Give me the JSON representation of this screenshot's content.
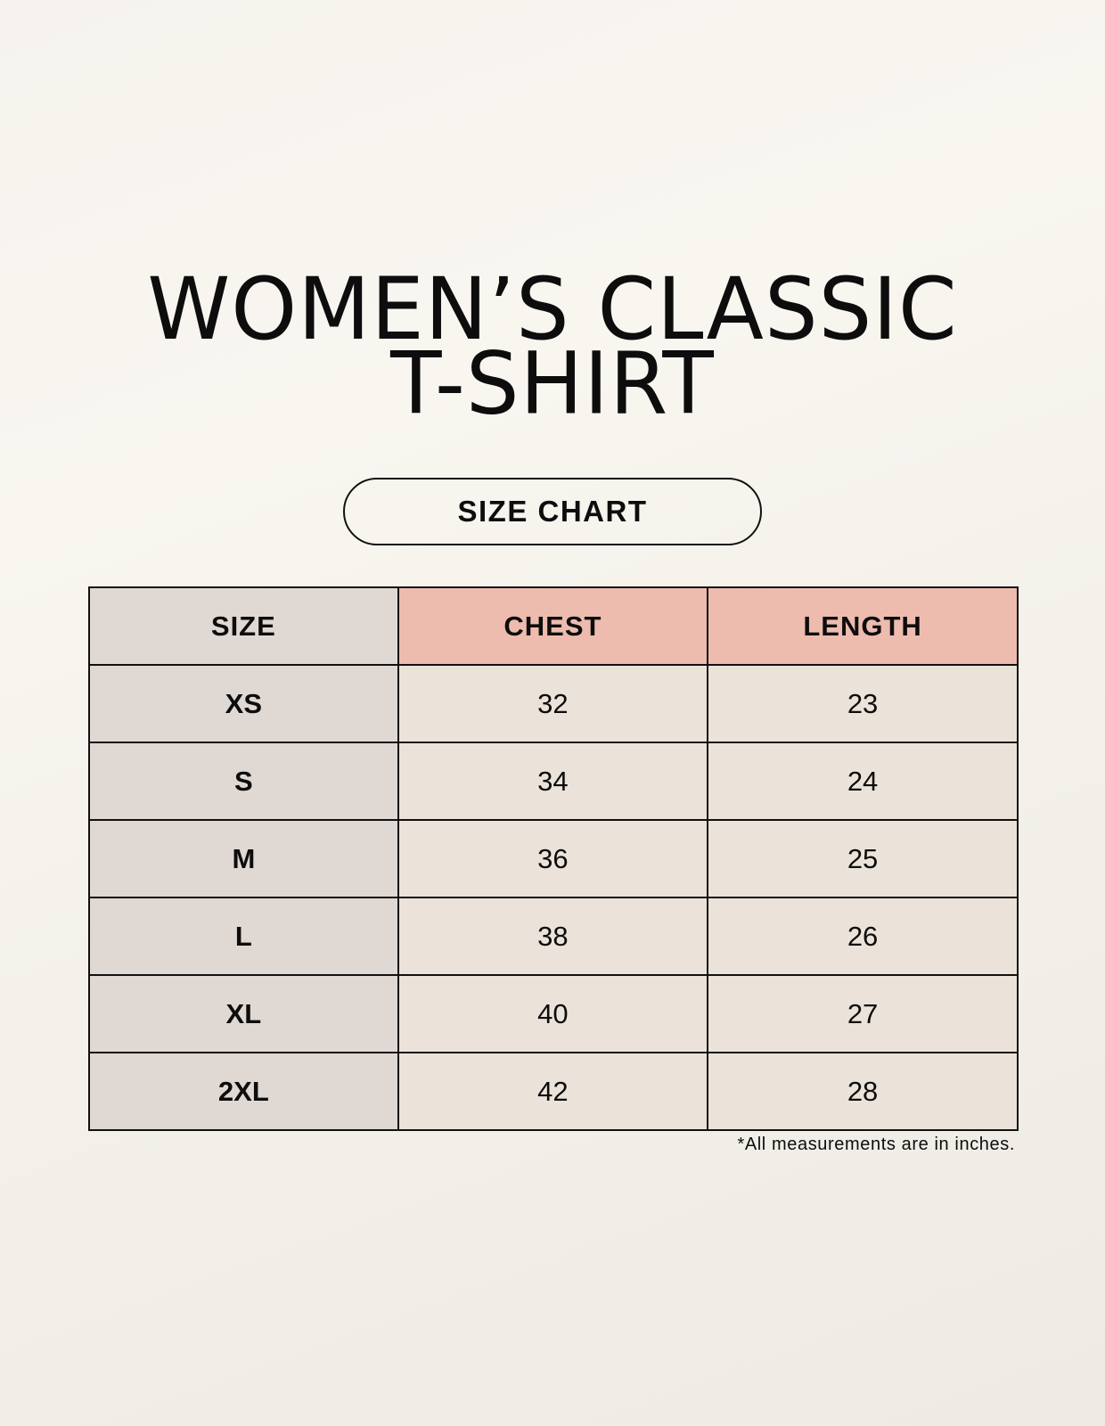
{
  "title": {
    "line1": "WOMEN’S CLASSIC",
    "line2": "T-SHIRT"
  },
  "badge": "SIZE CHART",
  "table": {
    "headers": [
      "SIZE",
      "CHEST",
      "LENGTH"
    ],
    "rows": [
      [
        "XS",
        "32",
        "23"
      ],
      [
        "S",
        "34",
        "24"
      ],
      [
        "M",
        "36",
        "25"
      ],
      [
        "L",
        "38",
        "26"
      ],
      [
        "XL",
        "40",
        "27"
      ],
      [
        "2XL",
        "42",
        "28"
      ]
    ]
  },
  "note": "*All measurements are in inches.",
  "colors": {
    "size_column": "#e0d8d3",
    "header_accent": "#edbcae",
    "value_cells": "#ebe3d9"
  }
}
